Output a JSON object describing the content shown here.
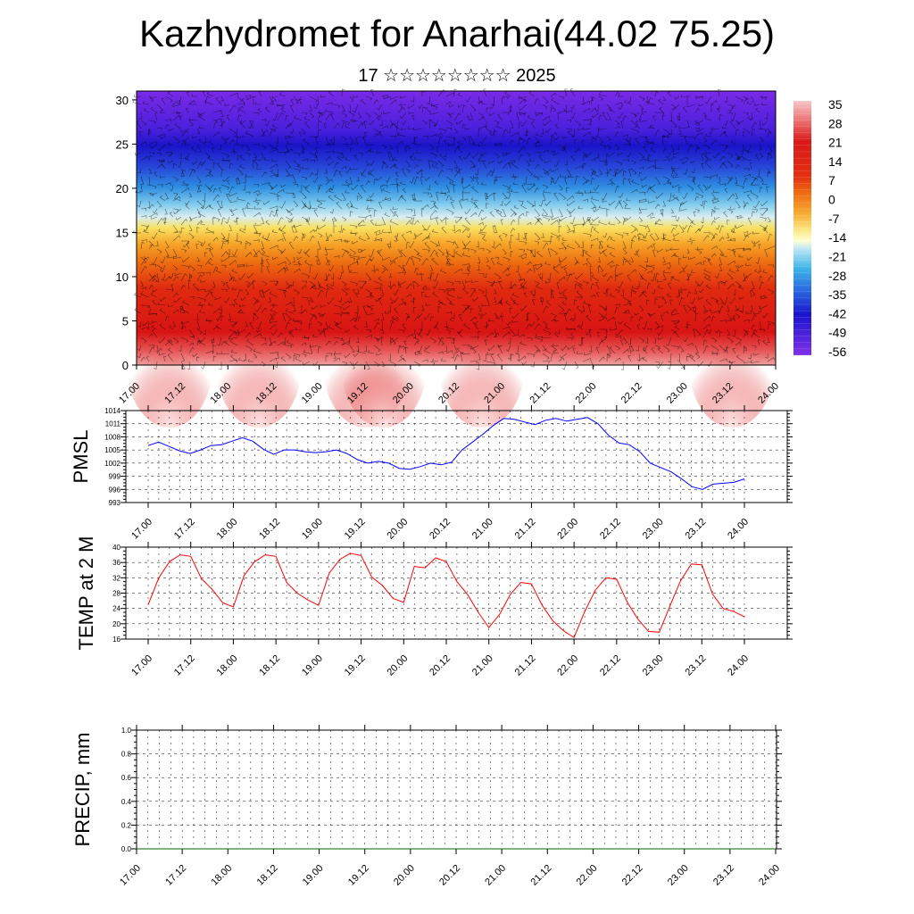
{
  "title": "Kazhydromet for Anarhai(44.02 75.25)",
  "subtitle": "17 ☆☆☆☆☆☆☆☆ 2025",
  "colors": {
    "pmsl_line": "#0000ff",
    "temp_line": "#ff0000",
    "precip_line": "#006400"
  },
  "chart_data": [
    {
      "type": "heatmap",
      "panel": "cross-section",
      "y_ticks": [
        "0",
        "5",
        "10",
        "15",
        "20",
        "25",
        "30"
      ],
      "ylim": [
        0,
        31
      ],
      "x_ticks": [
        "17.00",
        "17.12",
        "18.00",
        "18.12",
        "19.00",
        "19.12",
        "20.00",
        "20.12",
        "21.00",
        "21.12",
        "22.00",
        "22.12",
        "23.00",
        "23.12",
        "24.00"
      ],
      "colorbar_labels": [
        "35",
        "28",
        "21",
        "14",
        "7",
        "0",
        "-7",
        "-14",
        "-21",
        "-28",
        "-35",
        "-42",
        "-49",
        "-56"
      ],
      "colormap": [
        "#f8c8c8",
        "#ee7a78",
        "#dd1a1a",
        "#e83010",
        "#ee6010",
        "#f59a20",
        "#f9d040",
        "#fbf0a0",
        "#a8e0f0",
        "#40b8e8",
        "#3070e0",
        "#2020d0",
        "#3010d8",
        "#7a28e8"
      ],
      "wind_barbs": true
    },
    {
      "type": "line",
      "ylabel": "PMSL",
      "y_ticks": [
        "993",
        "996",
        "999",
        "1002",
        "1005",
        "1008",
        "1011",
        "1014"
      ],
      "ylim": [
        993,
        1014
      ],
      "x_ticks": [
        "17.00",
        "17.12",
        "18.00",
        "18.12",
        "19.00",
        "19.12",
        "20.00",
        "20.12",
        "21.00",
        "21.12",
        "22.00",
        "22.12",
        "23.00",
        "23.12",
        "24.00"
      ],
      "values": [
        1006.0,
        1006.8,
        1005.8,
        1004.8,
        1004.2,
        1005.0,
        1006.0,
        1006.2,
        1007.0,
        1007.8,
        1007.0,
        1005.2,
        1004.0,
        1005.0,
        1005.0,
        1004.6,
        1004.4,
        1004.6,
        1005.0,
        1004.2,
        1002.8,
        1002.0,
        1002.4,
        1002.0,
        1000.8,
        1000.6,
        1001.2,
        1002.0,
        1001.6,
        1002.2,
        1005.0,
        1006.8,
        1008.6,
        1010.6,
        1012.2,
        1012.0,
        1011.4,
        1010.8,
        1011.8,
        1012.2,
        1011.6,
        1012.0,
        1012.4,
        1011.0,
        1008.4,
        1006.6,
        1006.2,
        1004.6,
        1002.0,
        1001.0,
        1000.0,
        998.4,
        996.6,
        996.0,
        997.2,
        997.4,
        997.6,
        998.4
      ]
    },
    {
      "type": "line",
      "ylabel": "TEMP at 2 M",
      "y_ticks": [
        "16",
        "20",
        "24",
        "28",
        "32",
        "36",
        "40"
      ],
      "ylim": [
        16,
        40
      ],
      "x_ticks": [
        "17.00",
        "17.12",
        "18.00",
        "18.12",
        "19.00",
        "19.12",
        "20.00",
        "20.12",
        "21.00",
        "21.12",
        "22.00",
        "22.12",
        "23.00",
        "23.12",
        "24.00"
      ],
      "values": [
        25.0,
        32.0,
        36.2,
        38.0,
        37.6,
        31.8,
        29.0,
        25.5,
        24.4,
        32.6,
        36.2,
        38.0,
        37.6,
        30.8,
        28.0,
        26.2,
        24.8,
        33.2,
        36.8,
        38.4,
        37.8,
        32.2,
        30.0,
        26.6,
        25.6,
        35.0,
        34.6,
        37.2,
        36.2,
        31.0,
        27.6,
        23.0,
        19.0,
        22.4,
        27.6,
        30.8,
        30.4,
        24.8,
        20.8,
        18.2,
        16.4,
        23.2,
        28.8,
        32.0,
        31.6,
        25.6,
        21.2,
        18.0,
        17.8,
        24.6,
        31.2,
        35.6,
        35.4,
        27.8,
        24.0,
        23.2,
        21.8
      ]
    },
    {
      "type": "line",
      "ylabel": "PRECIP, mm",
      "y_ticks": [
        "0.0",
        "0.2",
        "0.4",
        "0.6",
        "0.8",
        "1.0"
      ],
      "ylim": [
        0,
        1.0
      ],
      "x_ticks": [
        "17.00",
        "17.12",
        "18.00",
        "18.12",
        "19.00",
        "19.12",
        "20.00",
        "20.12",
        "21.00",
        "21.12",
        "22.00",
        "22.12",
        "23.00",
        "23.12",
        "24.00"
      ],
      "values": [
        0,
        0,
        0,
        0,
        0,
        0,
        0,
        0,
        0,
        0,
        0,
        0,
        0,
        0,
        0
      ]
    }
  ]
}
